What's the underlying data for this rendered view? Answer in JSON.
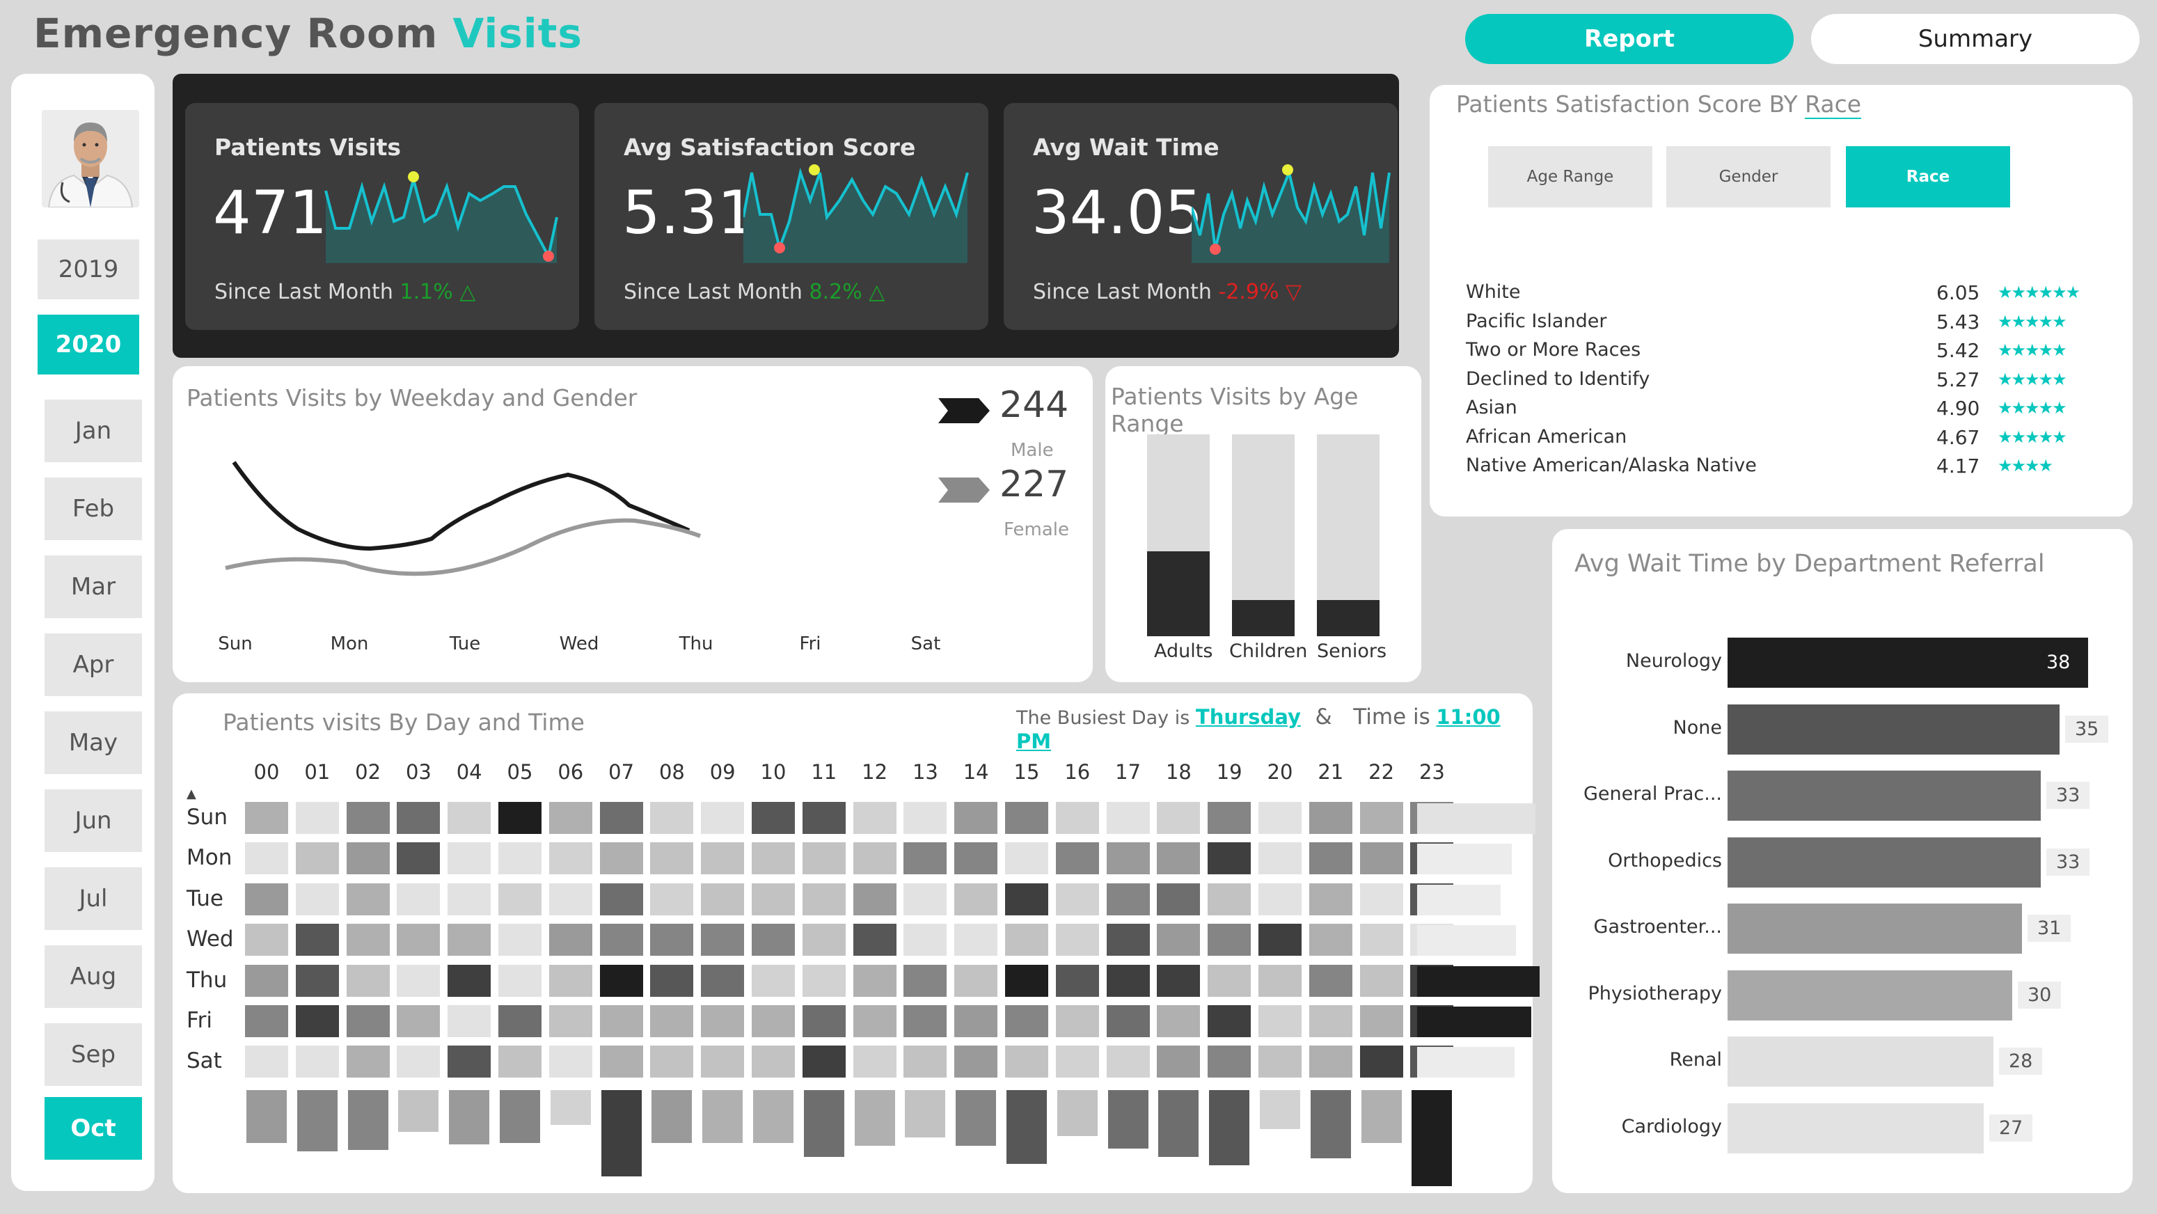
{
  "header": {
    "title_part1": "Emergency Room",
    "title_part2": "Visits",
    "report_label": "Report",
    "summary_label": "Summary"
  },
  "sidebar": {
    "years": [
      "2019",
      "2020"
    ],
    "active_year": "2020",
    "months": [
      "Jan",
      "Feb",
      "Mar",
      "Apr",
      "May",
      "Jun",
      "Jul",
      "Aug",
      "Sep",
      "Oct"
    ],
    "active_month": "Oct"
  },
  "kpis": [
    {
      "label": "Patients Visits",
      "value": "471",
      "since": "Since Last Month",
      "change": "1.1% △",
      "change_color": "#1a9e2a"
    },
    {
      "label": "Avg Satisfaction Score",
      "value": "5.31",
      "since": "Since Last Month",
      "change": "8.2% △",
      "change_color": "#1a9e2a"
    },
    {
      "label": "Avg Wait Time",
      "value": "34.05",
      "since": "Since Last Month",
      "change": "-2.9% ▽",
      "change_color": "#e02020"
    }
  ],
  "weekday_gender": {
    "title": "Patients Visits by Weekday and Gender",
    "days": [
      "Sun",
      "Mon",
      "Tue",
      "Wed",
      "Thu",
      "Fri",
      "Sat"
    ],
    "male_total": "244",
    "male_label": "Male",
    "female_total": "227",
    "female_label": "Female"
  },
  "age_range": {
    "title": "Patients Visits by Age Range",
    "groups": [
      "Adults",
      "Children",
      "Seniors"
    ],
    "fill_fraction": [
      0.42,
      0.18,
      0.18
    ]
  },
  "heatmap": {
    "title": "Patients visits By Day and Time",
    "busiest_day_prefix": "The Busiest Day is",
    "busiest_day": "Thursday",
    "amp": "&",
    "time_prefix": "Time is",
    "busiest_time": "11:00 PM",
    "hours": [
      "00",
      "01",
      "02",
      "03",
      "04",
      "05",
      "06",
      "07",
      "08",
      "09",
      "10",
      "11",
      "12",
      "13",
      "14",
      "15",
      "16",
      "17",
      "18",
      "19",
      "20",
      "21",
      "22",
      "23"
    ],
    "days": [
      "Sun",
      "Mon",
      "Tue",
      "Wed",
      "Thu",
      "Fri",
      "Sat"
    ]
  },
  "satisfaction": {
    "title_prefix": "Patients Satisfaction Score BY",
    "title_field": "Race",
    "toggles": [
      "Age Range",
      "Gender",
      "Race"
    ],
    "active_toggle": "Race",
    "rows": [
      {
        "name": "White",
        "value": "6.05",
        "stars": "★★★★★★"
      },
      {
        "name": "Pacific Islander",
        "value": "5.43",
        "stars": "★★★★★"
      },
      {
        "name": "Two or More Races",
        "value": "5.42",
        "stars": "★★★★★"
      },
      {
        "name": "Declined to Identify",
        "value": "5.27",
        "stars": "★★★★★"
      },
      {
        "name": "Asian",
        "value": "4.90",
        "stars": "★★★★★"
      },
      {
        "name": "African American",
        "value": "4.67",
        "stars": "★★★★★"
      },
      {
        "name": "Native American/Alaska Native",
        "value": "4.17",
        "stars": "★★★★"
      }
    ]
  },
  "wait_time": {
    "title": "Avg Wait Time by Department Referral",
    "rows": [
      {
        "name": "Neurology",
        "value": "38"
      },
      {
        "name": "None",
        "value": "35"
      },
      {
        "name": "General Prac...",
        "value": "33"
      },
      {
        "name": "Orthopedics",
        "value": "33"
      },
      {
        "name": "Gastroenter...",
        "value": "31"
      },
      {
        "name": "Physiotherapy",
        "value": "30"
      },
      {
        "name": "Renal",
        "value": "28"
      },
      {
        "name": "Cardiology",
        "value": "27"
      }
    ]
  },
  "colors": {
    "accent": "#05c7bd",
    "positive": "#1a9e2a",
    "negative": "#e02020"
  }
}
